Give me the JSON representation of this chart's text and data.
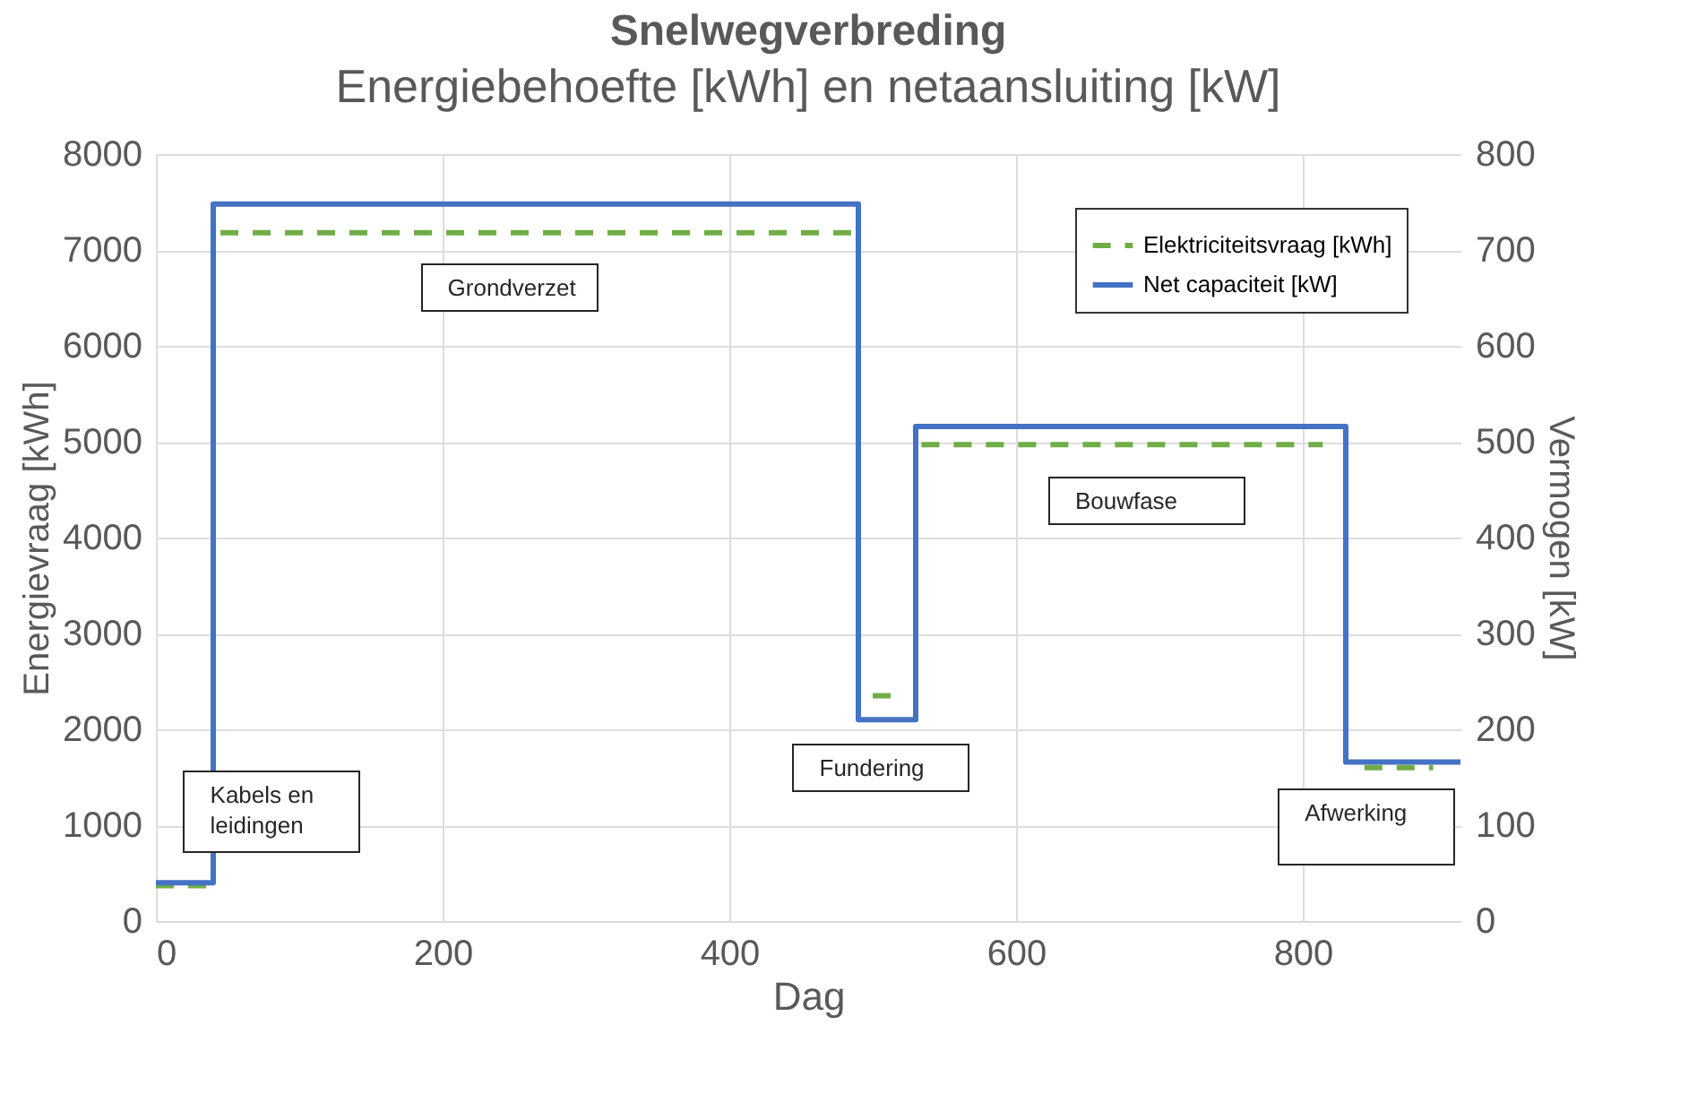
{
  "chart_data": {
    "type": "line",
    "title": "Snelwegverbreding",
    "subtitle": "Energiebehoefte [kWh] en netaansluiting [kW]",
    "xlabel": "Dag",
    "ylabel": "Energievraag [kWh]",
    "y2label": "Vermogen [kW]",
    "xlim": [
      0,
      910
    ],
    "xticks": [
      0,
      200,
      400,
      600,
      800
    ],
    "ylim": [
      0,
      8000
    ],
    "yticks": [
      0,
      1000,
      2000,
      3000,
      4000,
      5000,
      6000,
      7000,
      8000
    ],
    "y2lim": [
      0,
      800
    ],
    "y2ticks": [
      0,
      100,
      200,
      300,
      400,
      500,
      600,
      700,
      800
    ],
    "grid": true,
    "legend": "top right",
    "series": [
      {
        "name": "Elektriciteitsvraag [kWh]",
        "color": "#70ad47",
        "line_style": "dashed",
        "x": [
          0,
          40,
          null,
          45,
          490,
          null,
          500,
          518,
          null,
          534,
          814,
          null,
          843,
          891
        ],
        "values": [
          370,
          370,
          null,
          7180,
          7180,
          null,
          2350,
          2350,
          null,
          4970,
          4970,
          null,
          1600,
          1600
        ]
      },
      {
        "name": "Net capaciteit [kW]",
        "type": "step",
        "color": "#4472c4",
        "line_style": "solid",
        "axis": "y2",
        "x": [
          0,
          40,
          490,
          530,
          830,
          910
        ],
        "values": [
          40,
          748,
          210,
          516,
          166,
          166
        ]
      }
    ],
    "annotations": [
      "Kabels en leidingen",
      "Grondverzet",
      "Fundering",
      "Bouwfase",
      "Afwerking"
    ]
  }
}
